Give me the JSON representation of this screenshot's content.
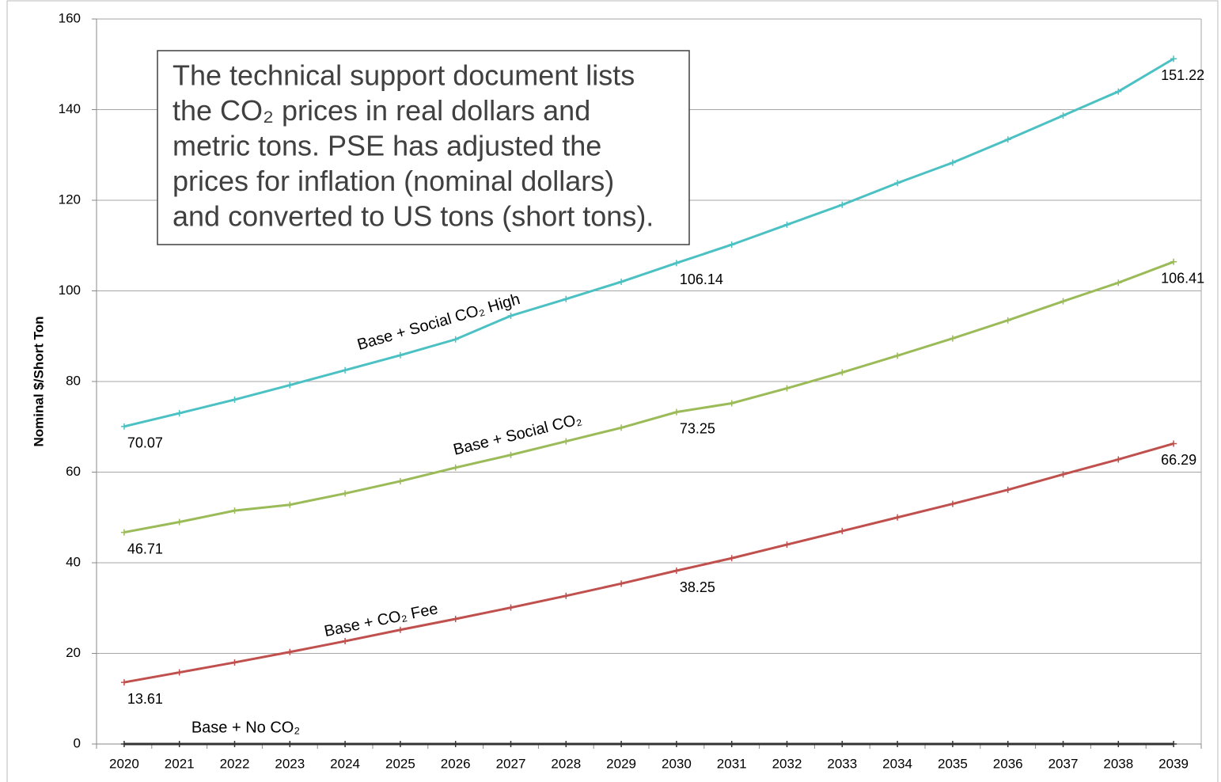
{
  "chart_data": {
    "type": "line",
    "y_label": "Nominal $/Short Ton",
    "annotation": [
      "The technical support document lists",
      "the CO₂ prices in real dollars and",
      "metric tons.  PSE has adjusted the",
      "prices for inflation (nominal dollars)",
      "and converted to US tons (short tons)."
    ],
    "categories": [
      "2020",
      "2021",
      "2022",
      "2023",
      "2024",
      "2025",
      "2026",
      "2027",
      "2028",
      "2029",
      "2030",
      "2031",
      "2032",
      "2033",
      "2034",
      "2035",
      "2036",
      "2037",
      "2038",
      "2039"
    ],
    "ylim": [
      0,
      160
    ],
    "yticks": [
      0,
      20,
      40,
      60,
      80,
      100,
      120,
      140,
      160
    ],
    "grid": true,
    "series": [
      {
        "name": "Base + Social CO₂ High",
        "color": "#4bc1c3",
        "labels_at": [
          0,
          10,
          19
        ],
        "values": [
          70.07,
          73,
          76,
          79.2,
          82.5,
          85.8,
          89.3,
          94.5,
          98.2,
          102,
          106.14,
          110.2,
          114.6,
          119,
          123.8,
          128.3,
          133.4,
          138.7,
          144,
          151.22
        ]
      },
      {
        "name": "Base + Social CO₂",
        "color": "#9bbb59",
        "labels_at": [
          0,
          10,
          19
        ],
        "values": [
          46.71,
          49,
          51.5,
          52.8,
          55.3,
          58,
          61,
          63.8,
          66.8,
          69.8,
          73.25,
          75.2,
          78.5,
          82,
          85.7,
          89.5,
          93.5,
          97.7,
          101.8,
          106.41
        ]
      },
      {
        "name": "Base + CO₂ Fee",
        "color": "#c0504d",
        "labels_at": [
          0,
          10,
          19
        ],
        "values": [
          13.61,
          15.8,
          18,
          20.3,
          22.7,
          25.2,
          27.6,
          30.1,
          32.7,
          35.4,
          38.25,
          41,
          44,
          47,
          50,
          53,
          56.1,
          59.5,
          62.8,
          66.29
        ]
      },
      {
        "name": "Base + No CO₂",
        "color": "#333333",
        "labels_at": [],
        "values": [
          0,
          0,
          0,
          0,
          0,
          0,
          0,
          0,
          0,
          0,
          0,
          0,
          0,
          0,
          0,
          0,
          0,
          0,
          0,
          0
        ]
      }
    ]
  }
}
